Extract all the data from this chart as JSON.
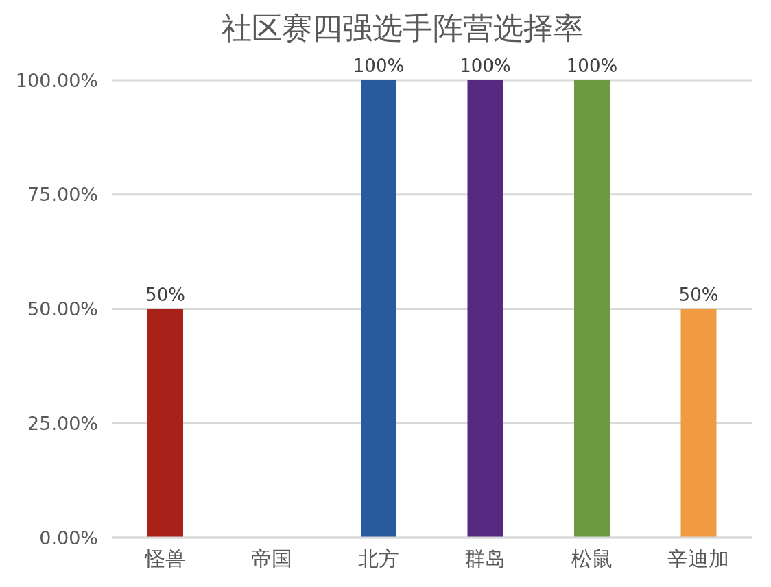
{
  "chart_data": {
    "type": "bar",
    "title": "社区赛四强选手阵营选择率",
    "categories": [
      "怪兽",
      "帝国",
      "北方",
      "群岛",
      "松鼠",
      "辛迪加"
    ],
    "values": [
      50,
      0,
      100,
      100,
      100,
      50
    ],
    "colors": [
      "#a8221a",
      "#4472c4",
      "#285a9e",
      "#55297f",
      "#6b9a43",
      "#f09a42"
    ],
    "value_labels": [
      "50%",
      null,
      "100%",
      "100%",
      "100%",
      "50%"
    ],
    "ylim": [
      0,
      100
    ],
    "yticks": [
      {
        "value": 0,
        "label": "0.00%"
      },
      {
        "value": 25,
        "label": "25.00%"
      },
      {
        "value": 50,
        "label": "50.00%"
      },
      {
        "value": 75,
        "label": "75.00%"
      },
      {
        "value": 100,
        "label": "100.00%"
      }
    ],
    "grid": "y"
  }
}
